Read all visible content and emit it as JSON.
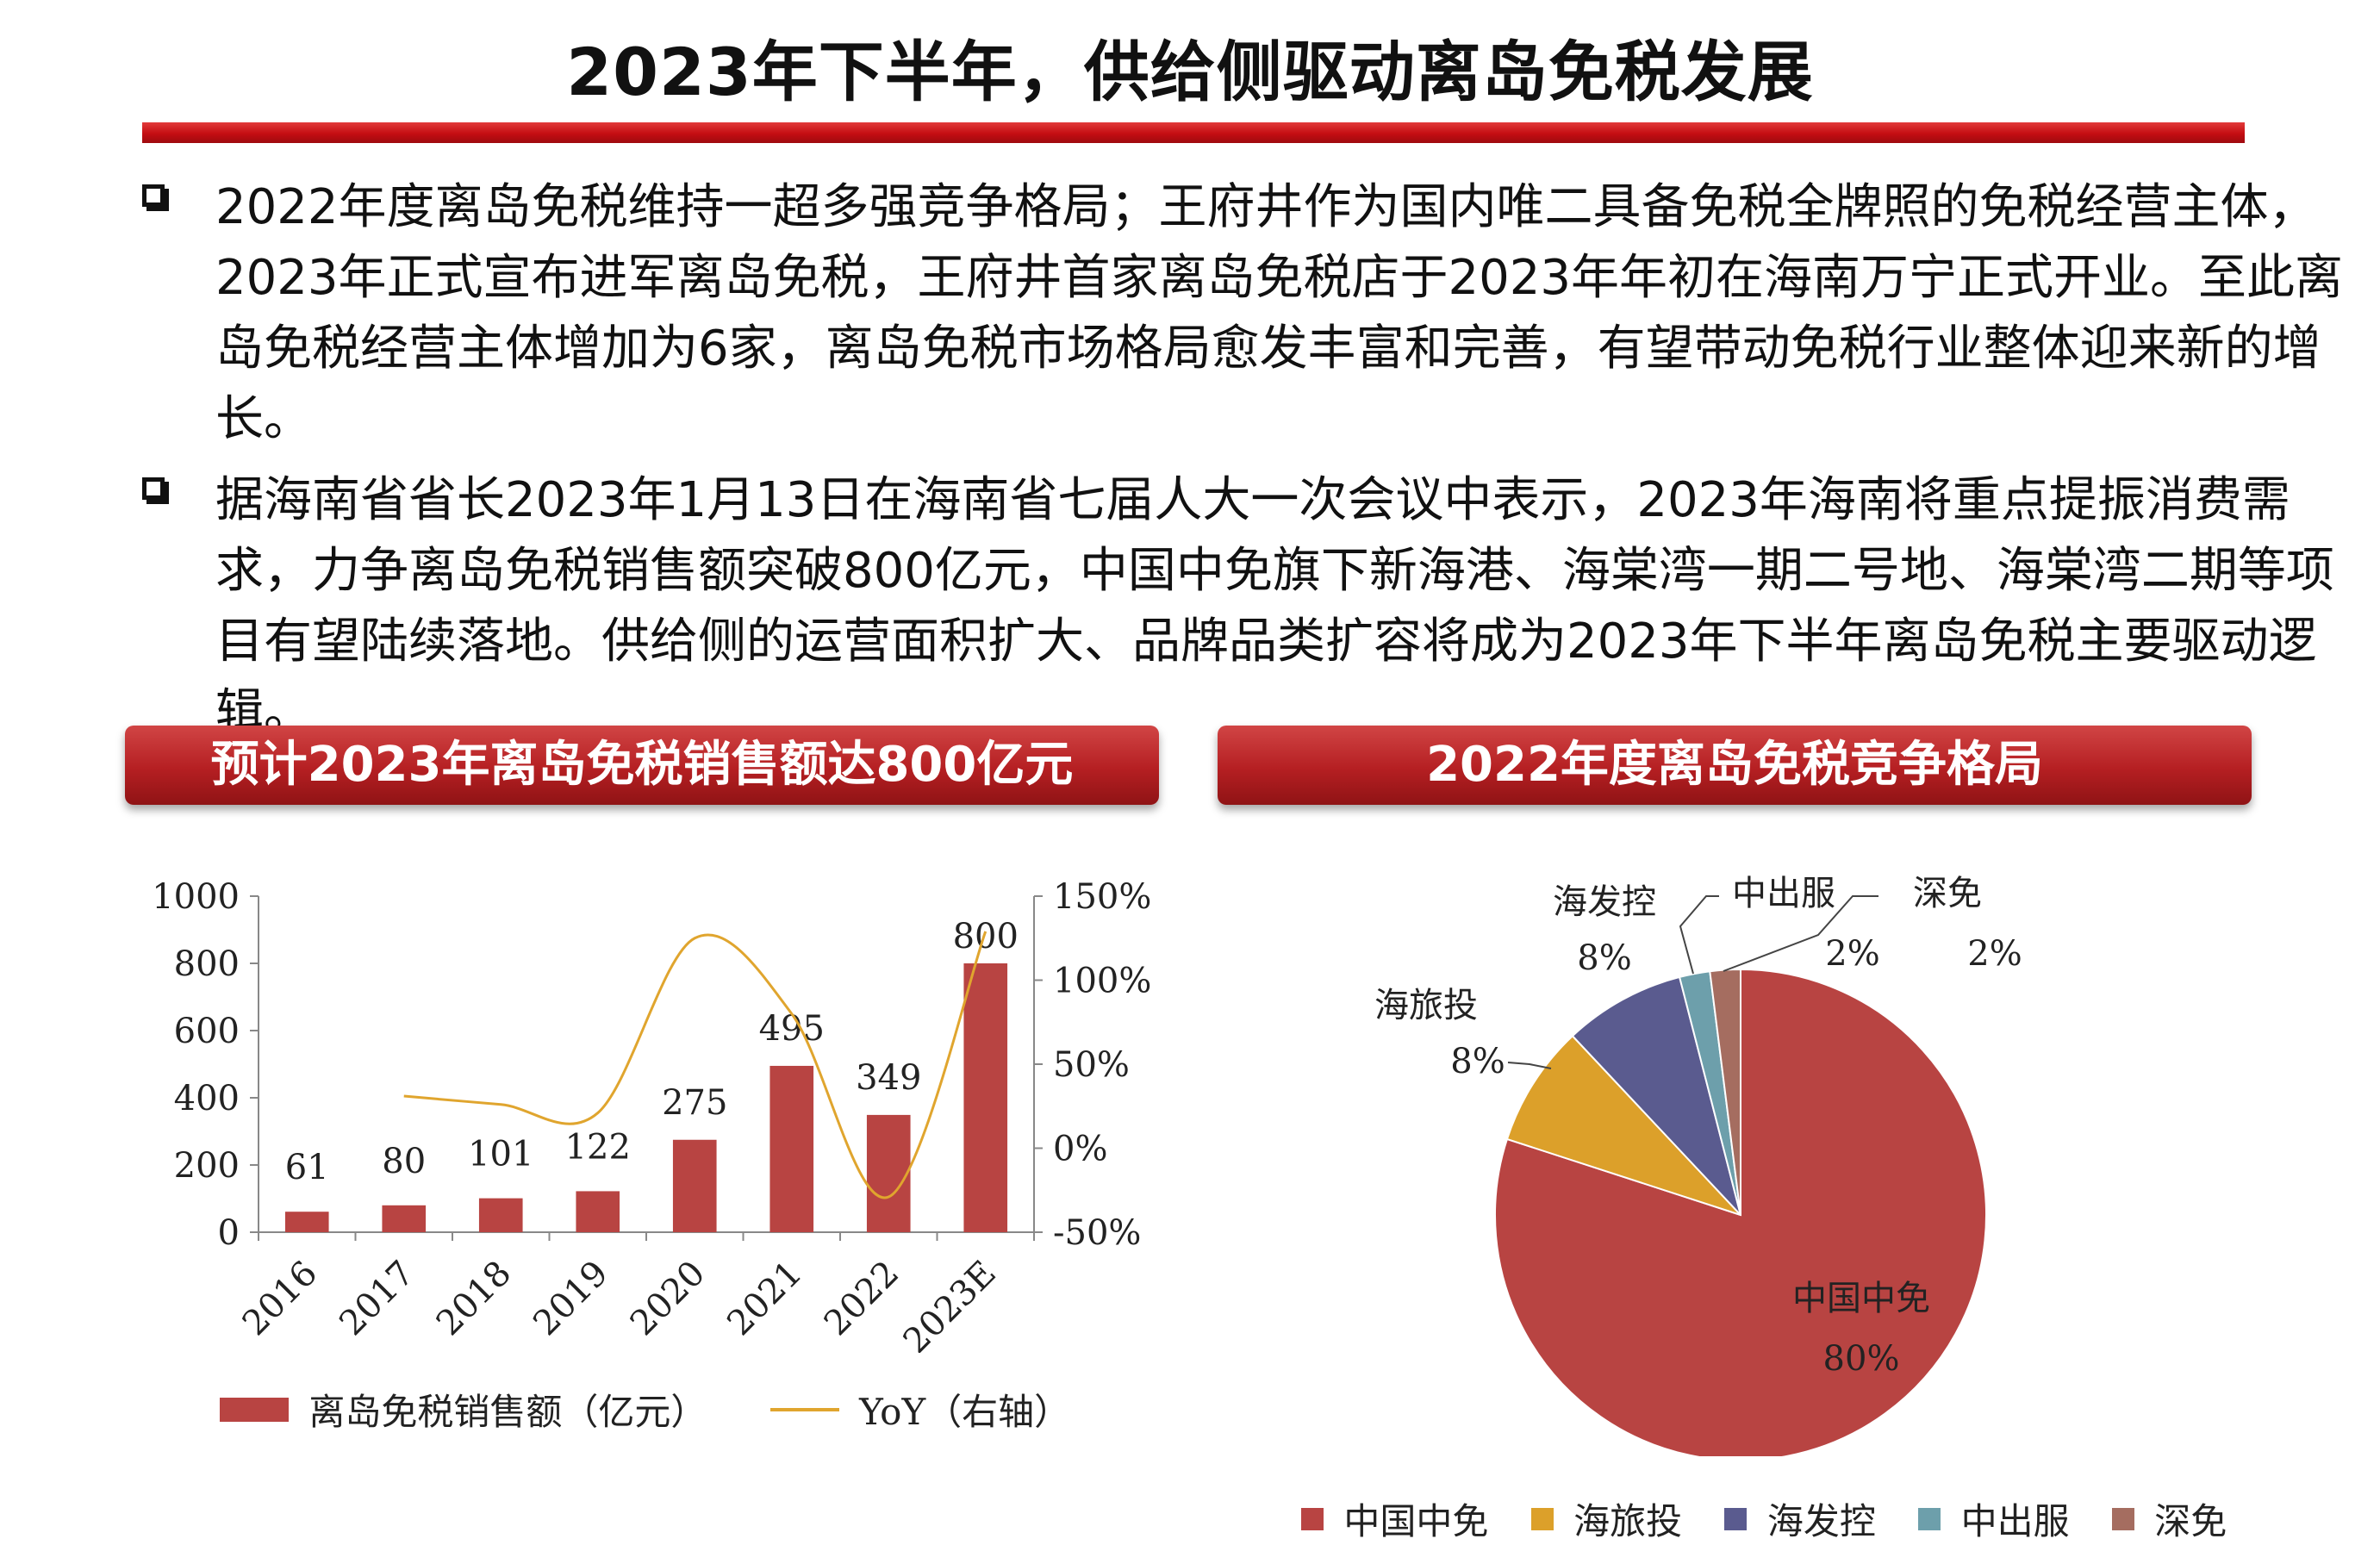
{
  "header": {
    "title": "2023年下半年，供给侧驱动离岛免税发展"
  },
  "bullets": [
    "2022年度离岛免税维持一超多强竞争格局；王府井作为国内唯二具备免税全牌照的免税经营主体，2023年正式宣布进军离岛免税，王府井首家离岛免税店于2023年年初在海南万宁正式开业。至此离岛免税经营主体增加为6家，离岛免税市场格局愈发丰富和完善，有望带动免税行业整体迎来新的增长。",
    "据海南省省长2023年1月13日在海南省七届人大一次会议中表示，2023年海南将重点提振消费需求，力争离岛免税销售额突破800亿元，中国中免旗下新海港、海棠湾一期二号地、海棠湾二期等项目有望陆续落地。供给侧的运营面积扩大、品牌品类扩容将成为2023年下半年离岛免税主要驱动逻辑。"
  ],
  "left_panel": {
    "title": "预计2023年离岛免税销售额达800亿元"
  },
  "right_panel": {
    "title": "2022年度离岛免税竞争格局"
  },
  "chart_data": [
    {
      "type": "bar",
      "title": "预计2023年离岛免税销售额达800亿元",
      "categories": [
        "2016",
        "2017",
        "2018",
        "2019",
        "2020",
        "2021",
        "2022",
        "2023E"
      ],
      "series": [
        {
          "name": "离岛免税销售额（亿元）",
          "type": "bar",
          "axis": "left",
          "color": "#b84442",
          "values": [
            61,
            80,
            101,
            122,
            275,
            495,
            349,
            800
          ]
        },
        {
          "name": "YoY（右轴）",
          "type": "line",
          "axis": "right",
          "color": "#e0a52e",
          "values": [
            null,
            0.31,
            0.26,
            0.21,
            1.25,
            0.8,
            -0.29,
            1.29
          ]
        }
      ],
      "y_left": {
        "range": [
          0,
          1000
        ],
        "ticks": [
          "0",
          "200",
          "400",
          "600",
          "800",
          "1000"
        ]
      },
      "y_right": {
        "range": [
          -0.5,
          1.5
        ],
        "ticks": [
          "-50%",
          "0%",
          "50%",
          "100%",
          "150%"
        ]
      },
      "bar_labels": [
        "61",
        "80",
        "101",
        "122",
        "275",
        "495",
        "349",
        "800"
      ],
      "legend": [
        "离岛免税销售额（亿元）",
        "YoY（右轴）"
      ],
      "legend_position": "bottom",
      "grid": false
    },
    {
      "type": "pie",
      "title": "2022年度离岛免税竞争格局",
      "labels": [
        "中国中免",
        "海旅投",
        "海发控",
        "中出服",
        "深免"
      ],
      "values": [
        80,
        8,
        8,
        2,
        2
      ],
      "value_labels": [
        "80%",
        "8%",
        "8%",
        "2%",
        "2%"
      ],
      "colors": [
        "#b84442",
        "#dca02a",
        "#5a5b8f",
        "#6d9fab",
        "#a56d60"
      ],
      "legend_position": "bottom"
    }
  ]
}
